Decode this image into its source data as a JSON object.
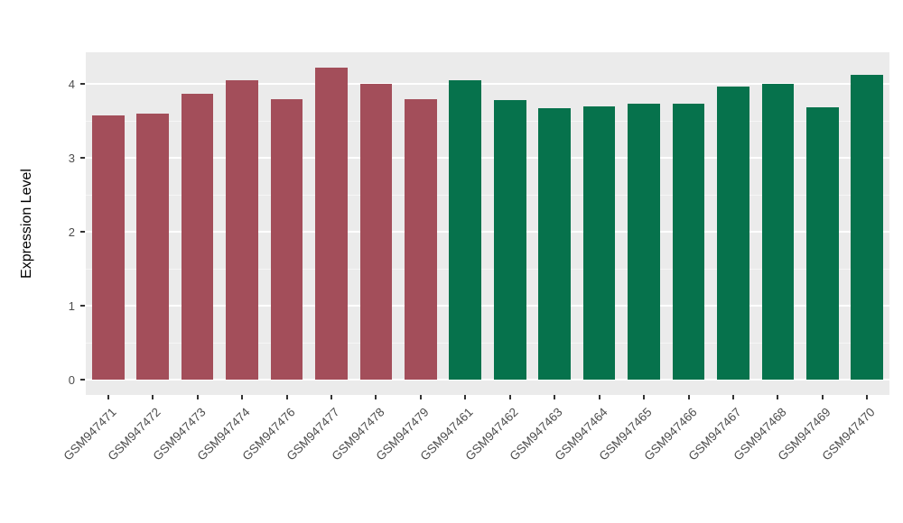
{
  "chart_data": {
    "type": "bar",
    "title": "",
    "xlabel": "",
    "ylabel": "Expression Level",
    "ylim": [
      -0.21,
      4.43
    ],
    "yticks": [
      0,
      1,
      2,
      3,
      4
    ],
    "minor_ticks": [
      0.5,
      1.5,
      2.5,
      3.5
    ],
    "categories": [
      "GSM947471",
      "GSM947472",
      "GSM947473",
      "GSM947474",
      "GSM947476",
      "GSM947477",
      "GSM947478",
      "GSM947479",
      "GSM947461",
      "GSM947462",
      "GSM947463",
      "GSM947464",
      "GSM947465",
      "GSM947466",
      "GSM947467",
      "GSM947468",
      "GSM947469",
      "GSM947470"
    ],
    "values": [
      3.58,
      3.6,
      3.87,
      4.05,
      3.8,
      4.22,
      4.0,
      3.8,
      4.05,
      3.78,
      3.67,
      3.7,
      3.73,
      3.73,
      3.96,
      4.0,
      3.68,
      4.12
    ],
    "groups": [
      "groupA",
      "groupA",
      "groupA",
      "groupA",
      "groupA",
      "groupA",
      "groupA",
      "groupA",
      "groupB",
      "groupB",
      "groupB",
      "groupB",
      "groupB",
      "groupB",
      "groupB",
      "groupB",
      "groupB",
      "groupB"
    ],
    "colors": {
      "groupA": "#A34E5A",
      "groupB": "#06724C"
    },
    "panel_bg": "#EBEBEB",
    "grid_color": "#FFFFFF",
    "legend": "none",
    "grid": "on"
  }
}
